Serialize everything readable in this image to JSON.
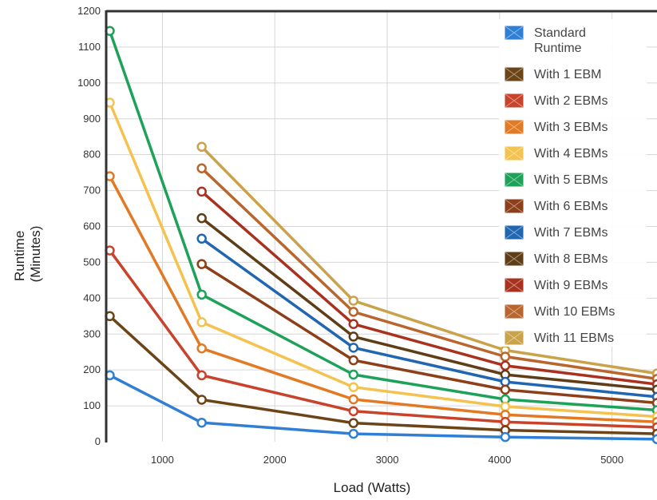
{
  "chart_data": {
    "type": "line",
    "xlabel": "Load (Watts)",
    "ylabel": "Runtime (Minutes)",
    "ylabel_lines": [
      "Runtime",
      "(Minutes)"
    ],
    "xlim": [
      500,
      5400
    ],
    "ylim": [
      0,
      1200
    ],
    "xticks": [
      1000,
      2000,
      3000,
      4000,
      5000
    ],
    "yticks": [
      0,
      100,
      200,
      300,
      400,
      500,
      600,
      700,
      800,
      900,
      1000,
      1100,
      1200
    ],
    "grid": true,
    "legend_position": "top-right",
    "series": [
      {
        "name": "With 11 EBMs",
        "color": "#c9a24a",
        "x": [
          1350,
          2700,
          4050,
          5400
        ],
        "values": [
          822,
          393,
          255,
          190
        ]
      },
      {
        "name": "With 10 EBMs",
        "color": "#b8652e",
        "x": [
          1350,
          2700,
          4050,
          5400
        ],
        "values": [
          762,
          362,
          237,
          175
        ]
      },
      {
        "name": "With 9 EBMs",
        "color": "#a8321f",
        "x": [
          1350,
          2700,
          4050,
          5400
        ],
        "values": [
          697,
          328,
          212,
          160
        ]
      },
      {
        "name": "With 8 EBMs",
        "color": "#5e3d17",
        "x": [
          1350,
          2700,
          4050,
          5400
        ],
        "values": [
          623,
          293,
          187,
          145
        ]
      },
      {
        "name": "With 7 EBMs",
        "color": "#2066b0",
        "x": [
          1350,
          2700,
          4050,
          5400
        ],
        "values": [
          566,
          262,
          167,
          125
        ]
      },
      {
        "name": "With 6 EBMs",
        "color": "#8c3f18",
        "x": [
          1350,
          2700,
          4050,
          5400
        ],
        "values": [
          495,
          227,
          145,
          108
        ]
      },
      {
        "name": "With 5 EBMs",
        "color": "#1ea158",
        "x": [
          532,
          1350,
          2700,
          4050,
          5400
        ],
        "values": [
          1145,
          410,
          187,
          118,
          88
        ]
      },
      {
        "name": "With 4 EBMs",
        "color": "#f3c24f",
        "x": [
          532,
          1350,
          2700,
          4050,
          5400
        ],
        "values": [
          945,
          333,
          152,
          98,
          70
        ]
      },
      {
        "name": "With 3 EBMs",
        "color": "#e27a25",
        "x": [
          532,
          1350,
          2700,
          4050,
          5400
        ],
        "values": [
          740,
          260,
          118,
          75,
          55
        ]
      },
      {
        "name": "With 2 EBMs",
        "color": "#c8432b",
        "x": [
          532,
          1350,
          2700,
          4050,
          5400
        ],
        "values": [
          533,
          185,
          85,
          55,
          40
        ]
      },
      {
        "name": "With 1 EBM",
        "color": "#6b4418",
        "x": [
          532,
          1350,
          2700,
          4050,
          5400
        ],
        "values": [
          350,
          117,
          52,
          32,
          22
        ]
      },
      {
        "name": "Standard Runtime",
        "color": "#2f7fd4",
        "x": [
          532,
          1350,
          2700,
          4050,
          5400
        ],
        "values": [
          185,
          53,
          22,
          13,
          7
        ]
      }
    ],
    "legend": [
      {
        "label_lines": [
          "Standard",
          "Runtime"
        ],
        "color": "#2f7fd4"
      },
      {
        "label_lines": [
          "With 1 EBM"
        ],
        "color": "#6b4418"
      },
      {
        "label_lines": [
          "With 2 EBMs"
        ],
        "color": "#c8432b"
      },
      {
        "label_lines": [
          "With 3 EBMs"
        ],
        "color": "#e27a25"
      },
      {
        "label_lines": [
          "With 4 EBMs"
        ],
        "color": "#f3c24f"
      },
      {
        "label_lines": [
          "With 5 EBMs"
        ],
        "color": "#1ea158"
      },
      {
        "label_lines": [
          "With 6 EBMs"
        ],
        "color": "#8c3f18"
      },
      {
        "label_lines": [
          "With 7 EBMs"
        ],
        "color": "#2066b0"
      },
      {
        "label_lines": [
          "With 8 EBMs"
        ],
        "color": "#5e3d17"
      },
      {
        "label_lines": [
          "With 9 EBMs"
        ],
        "color": "#a8321f"
      },
      {
        "label_lines": [
          "With 10 EBMs"
        ],
        "color": "#b8652e"
      },
      {
        "label_lines": [
          "With 11 EBMs"
        ],
        "color": "#c9a24a"
      }
    ]
  }
}
